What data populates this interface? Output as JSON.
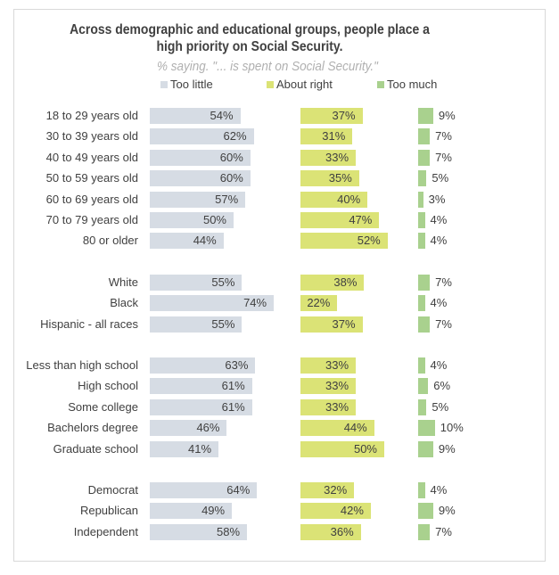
{
  "chart_data": {
    "type": "bar",
    "title": "Across demographic and educational groups, people place a high priority on Social Security.",
    "subtitle": "% saying. \"... is spent on Social Security.\"",
    "series": [
      {
        "name": "Too little",
        "color": "#d6dce4"
      },
      {
        "name": "About right",
        "color": "#dbe376"
      },
      {
        "name": "Too much",
        "color": "#a9d18e"
      }
    ],
    "legend": "top",
    "grid": false,
    "groups": [
      {
        "rows": [
          {
            "label": "18 to 29 years old",
            "values": [
              54,
              37,
              9
            ]
          },
          {
            "label": "30 to 39 years old",
            "values": [
              62,
              31,
              7
            ]
          },
          {
            "label": "40 to 49 years old",
            "values": [
              60,
              33,
              7
            ]
          },
          {
            "label": "50 to 59 years old",
            "values": [
              60,
              35,
              5
            ]
          },
          {
            "label": "60 to 69 years old",
            "values": [
              57,
              40,
              3
            ]
          },
          {
            "label": "70 to 79 years old",
            "values": [
              50,
              47,
              4
            ]
          },
          {
            "label": "80 or older",
            "values": [
              44,
              52,
              4
            ]
          }
        ]
      },
      {
        "rows": [
          {
            "label": "White",
            "values": [
              55,
              38,
              7
            ]
          },
          {
            "label": "Black",
            "values": [
              74,
              22,
              4
            ]
          },
          {
            "label": "Hispanic - all races",
            "values": [
              55,
              37,
              7
            ]
          }
        ]
      },
      {
        "rows": [
          {
            "label": "Less than high school",
            "values": [
              63,
              33,
              4
            ]
          },
          {
            "label": "High school",
            "values": [
              61,
              33,
              6
            ]
          },
          {
            "label": "Some college",
            "values": [
              61,
              33,
              5
            ]
          },
          {
            "label": "Bachelors degree",
            "values": [
              46,
              44,
              10
            ]
          },
          {
            "label": "Graduate school",
            "values": [
              41,
              50,
              9
            ]
          }
        ]
      },
      {
        "rows": [
          {
            "label": "Democrat",
            "values": [
              64,
              32,
              4
            ]
          },
          {
            "label": "Republican",
            "values": [
              49,
              42,
              9
            ]
          },
          {
            "label": "Independent",
            "values": [
              58,
              36,
              7
            ]
          }
        ]
      }
    ]
  }
}
